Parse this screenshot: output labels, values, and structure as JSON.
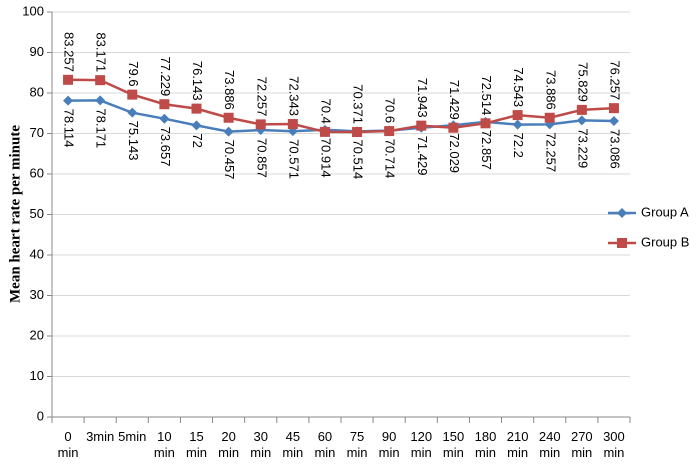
{
  "chart_data": {
    "type": "line",
    "ylabel": "Mean heart rate per minute",
    "categories": [
      "0 min",
      "3min",
      "5min",
      "10 min",
      "15 min",
      "20 min",
      "30 min",
      "45 min",
      "60 min",
      "75 min",
      "90 min",
      "120 min",
      "150 min",
      "180 min",
      "210 min",
      "240 min",
      "270 min",
      "300 min"
    ],
    "series": [
      {
        "name": "Group A",
        "color": "#4a7ebb",
        "marker": "diamond",
        "values": [
          78.114,
          78.171,
          75.143,
          73.657,
          72,
          70.457,
          70.857,
          70.571,
          70.914,
          70.514,
          70.714,
          71.429,
          72.029,
          72.857,
          72.2,
          72.257,
          73.229,
          73.086
        ]
      },
      {
        "name": "Group B",
        "color": "#be4b48",
        "marker": "square",
        "values": [
          83.257,
          83.171,
          79.6,
          77.229,
          76.143,
          73.886,
          72.257,
          72.343,
          70.4,
          70.371,
          70.6,
          71.943,
          71.429,
          72.514,
          74.543,
          73.886,
          75.829,
          76.257
        ]
      }
    ],
    "ylim": [
      0,
      100
    ],
    "yticks": [
      0,
      10,
      20,
      30,
      40,
      50,
      60,
      70,
      80,
      90,
      100
    ],
    "grid": true,
    "legend": "right"
  }
}
